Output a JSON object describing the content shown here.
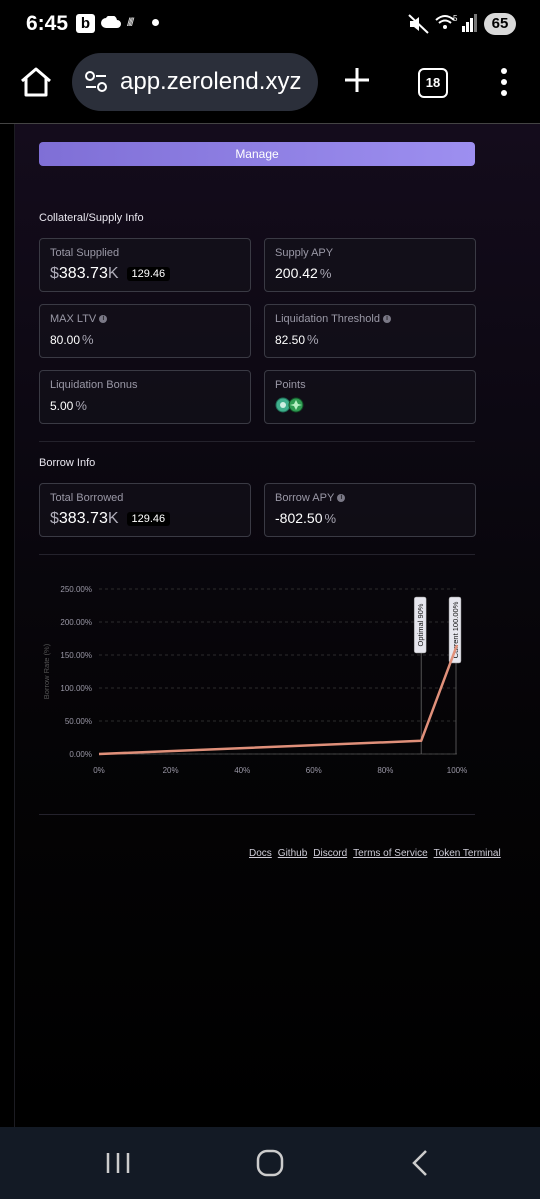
{
  "status_bar": {
    "time": "6:45",
    "app_badge": "b",
    "wifi_label": "5",
    "battery": "65"
  },
  "browser": {
    "url": "app.zerolend.xyz",
    "tab_count": "18"
  },
  "manage_label": "Manage",
  "collateral": {
    "title": "Collateral/Supply Info",
    "total_supplied": {
      "label": "Total Supplied",
      "currency": "$",
      "value": "383.73",
      "unit": "K",
      "amount": "129.46"
    },
    "supply_apy": {
      "label": "Supply APY",
      "value": "200.42",
      "unit": "%"
    },
    "max_ltv": {
      "label": "MAX LTV",
      "value": "80.00",
      "unit": "%"
    },
    "liquidation_threshold": {
      "label": "Liquidation Threshold",
      "value": "82.50",
      "unit": "%"
    },
    "liquidation_bonus": {
      "label": "Liquidation Bonus",
      "value": "5.00",
      "unit": "%"
    },
    "points": {
      "label": "Points"
    }
  },
  "borrow": {
    "title": "Borrow Info",
    "total_borrowed": {
      "label": "Total Borrowed",
      "currency": "$",
      "value": "383.73",
      "unit": "K",
      "amount": "129.46"
    },
    "borrow_apy": {
      "label": "Borrow APY",
      "value": "-802.50",
      "unit": "%"
    }
  },
  "chart_data": {
    "type": "line",
    "ylabel": "Borrow Rate (%)",
    "xlabel": "",
    "x_ticks": [
      "0%",
      "20%",
      "40%",
      "60%",
      "80%",
      "100%"
    ],
    "y_ticks": [
      "0.00%",
      "50.00%",
      "100.00%",
      "150.00%",
      "200.00%",
      "250.00%"
    ],
    "xlim": [
      0,
      100
    ],
    "ylim": [
      0,
      250
    ],
    "series": [
      {
        "x": [
          0,
          90,
          100
        ],
        "y": [
          0,
          20,
          165
        ]
      }
    ],
    "annotations": [
      {
        "label": "Optimal 90%",
        "x": 90
      },
      {
        "label": "Current 100.00%",
        "x": 100
      }
    ],
    "grid": true
  },
  "footer": {
    "links": [
      "Docs",
      "Github",
      "Discord",
      "Terms of Service",
      "Token Terminal"
    ]
  }
}
